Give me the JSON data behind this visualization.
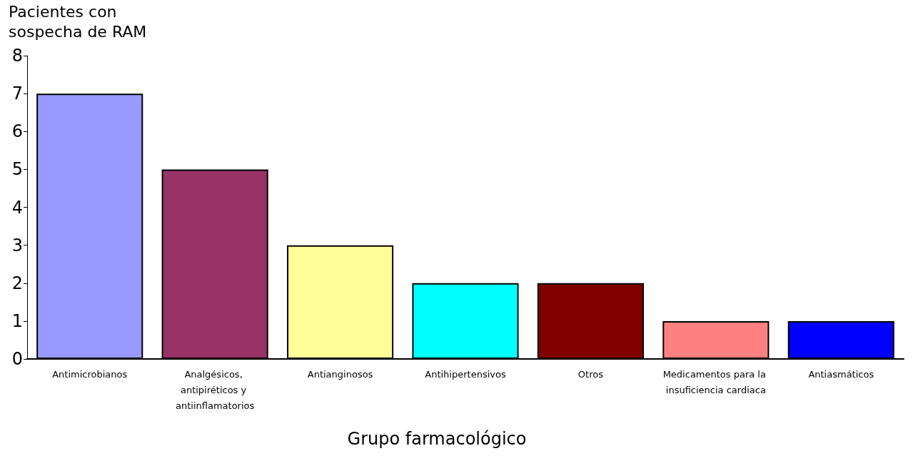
{
  "chart_data": {
    "type": "bar",
    "ylabel": "Pacientes con sospecha de RAM",
    "xlabel": "Grupo farmacológico",
    "categories": [
      "Antimicrobianos",
      "Analgésicos, antipiréticos y antiinflamatorios",
      "Antianginosos",
      "Antihipertensivos",
      "Otros",
      "Medicamentos para la insuficiencia cardiaca",
      "Antiasmáticos"
    ],
    "values": [
      7,
      5,
      3,
      2,
      2,
      1,
      1
    ],
    "colors": [
      "#9999ff",
      "#993366",
      "#ffff99",
      "#00ffff",
      "#800000",
      "#ff8080",
      "#0000ff"
    ],
    "ylim": [
      0,
      8
    ],
    "yticks": [
      0,
      1,
      2,
      3,
      4,
      5,
      6,
      7,
      8
    ],
    "grid": false
  }
}
